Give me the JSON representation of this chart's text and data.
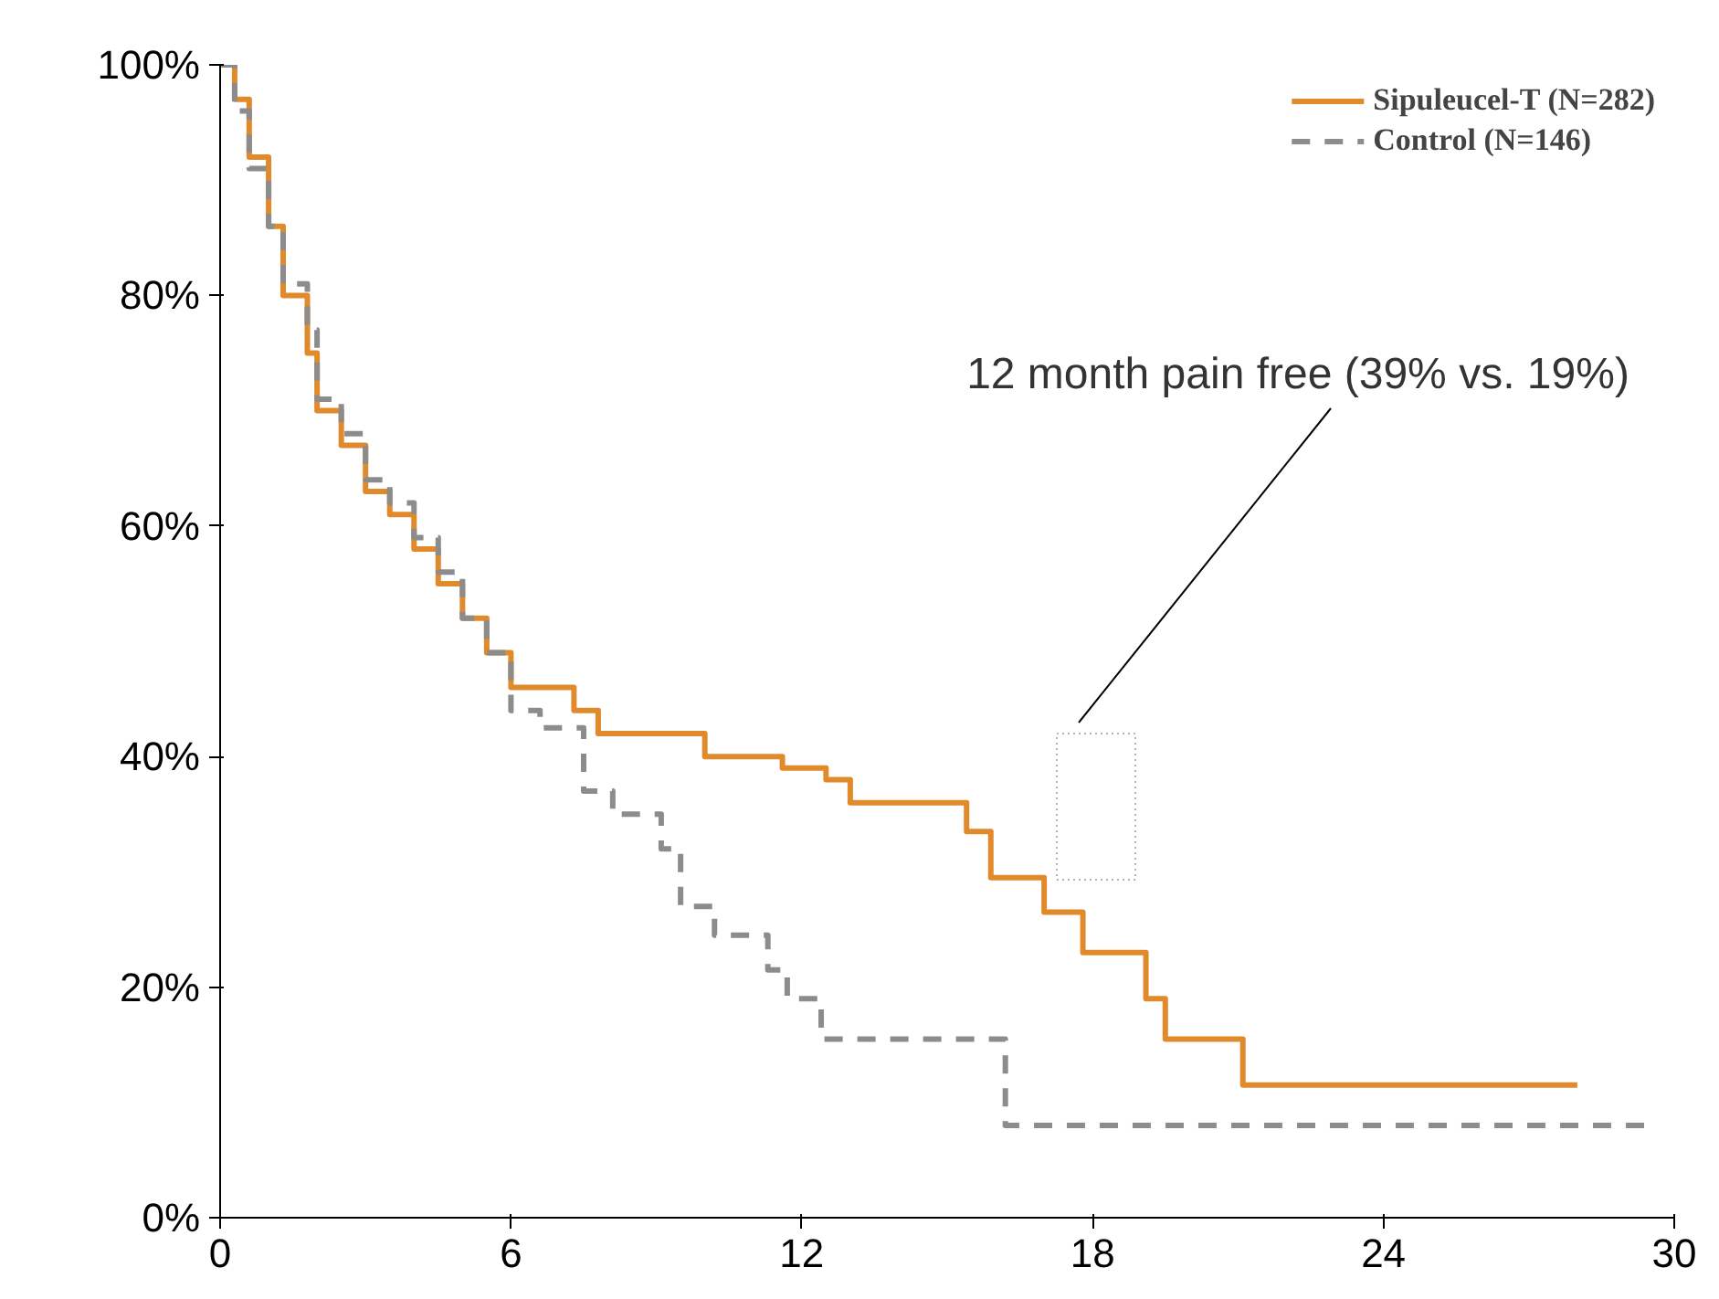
{
  "chart_data": {
    "type": "step",
    "series": [
      {
        "name": "Sipuleucel-T (N=282)",
        "color": "#e08a2c",
        "line_style": "solid",
        "x": [
          0,
          0.3,
          0.6,
          1,
          1.3,
          1.8,
          2,
          2.5,
          3,
          3.5,
          4,
          4.5,
          5,
          5.5,
          6,
          7.3,
          7.8,
          10,
          11.6,
          12.5,
          13,
          15.4,
          15.9,
          17,
          17.8,
          19.1,
          19.5,
          21.1,
          28
        ],
        "values": [
          100,
          97,
          92,
          86,
          80,
          75,
          70,
          67,
          63,
          61,
          58,
          55,
          52,
          49,
          46,
          44,
          42,
          40,
          39,
          38,
          36,
          33.5,
          29.5,
          26.5,
          23,
          19,
          15.5,
          11.5,
          11.5
        ]
      },
      {
        "name": "Control (N=146)",
        "color": "#8c8c8c",
        "line_style": "dashed",
        "x": [
          0,
          0.3,
          0.6,
          1,
          1.3,
          1.8,
          2,
          2.5,
          3,
          3.5,
          4,
          4.5,
          5,
          5.5,
          6,
          6.6,
          7.5,
          8.1,
          9.1,
          9.5,
          10.2,
          11.3,
          11.7,
          12.4,
          16.2,
          29.5
        ],
        "values": [
          100,
          96,
          91,
          86,
          81,
          77,
          71,
          68,
          64,
          62,
          59,
          56,
          52,
          49,
          44,
          42.5,
          37,
          35,
          32,
          27,
          24.5,
          21.5,
          19,
          15.5,
          8,
          8
        ]
      }
    ],
    "xlim": [
      0,
      30
    ],
    "xticks": [
      0,
      6,
      12,
      18,
      24,
      30
    ],
    "ylim": [
      0,
      100
    ],
    "yticks": [
      {
        "value": 0,
        "label": "0%"
      },
      {
        "value": 20,
        "label": "20%"
      },
      {
        "value": 40,
        "label": "40%"
      },
      {
        "value": 60,
        "label": "60%"
      },
      {
        "value": 80,
        "label": "80%"
      },
      {
        "value": 100,
        "label": "100%"
      }
    ],
    "annotations": [
      "12 month pain free (39% vs. 19%)"
    ],
    "legend": "top right",
    "grid": false
  }
}
